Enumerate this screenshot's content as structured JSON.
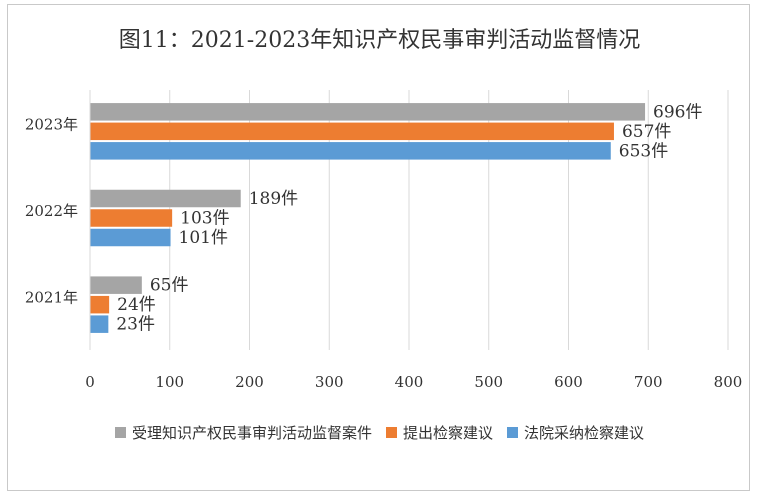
{
  "chart_data": {
    "type": "bar",
    "orientation": "horizontal",
    "title": "图11：2021-2023年知识产权民事审判活动监督情况",
    "categories": [
      "2023年",
      "2022年",
      "2021年"
    ],
    "series": [
      {
        "name": "受理知识产权民事审判活动监督案件",
        "color": "#a5a5a5",
        "values": [
          696,
          189,
          65
        ],
        "labels": [
          "696件",
          "189件",
          "65件"
        ]
      },
      {
        "name": "提出检察建议",
        "color": "#ed7d31",
        "values": [
          657,
          103,
          24
        ],
        "labels": [
          "657件",
          "103件",
          "24件"
        ]
      },
      {
        "name": "法院采纳检察建议",
        "color": "#5b9bd5",
        "values": [
          653,
          101,
          23
        ],
        "labels": [
          "653件",
          "101件",
          "23件"
        ]
      }
    ],
    "xlim": [
      0,
      800
    ],
    "xticks": [
      "0",
      "100",
      "200",
      "300",
      "400",
      "500",
      "600",
      "700",
      "800"
    ],
    "grid": true,
    "legend_position": "bottom"
  }
}
